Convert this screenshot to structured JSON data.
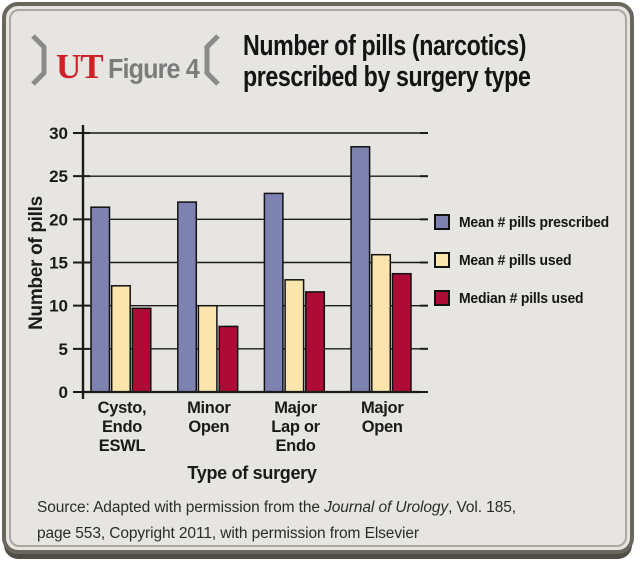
{
  "header": {
    "brand": "UT",
    "figure_label": "Figure 4"
  },
  "title": {
    "line1": "Number of pills (narcotics)",
    "line2": "prescribed by surgery type"
  },
  "chart_data": {
    "type": "bar",
    "title": "Number of pills (narcotics) prescribed by surgery type",
    "categories": [
      [
        "Cysto,",
        "Endo",
        "ESWL"
      ],
      [
        "Minor",
        "Open"
      ],
      [
        "Major",
        "Lap or",
        "Endo"
      ],
      [
        "Major",
        "Open"
      ]
    ],
    "series": [
      {
        "name": "Mean # pills prescribed",
        "color": "#7e82b1",
        "values": [
          21.4,
          22.0,
          23.0,
          28.4
        ]
      },
      {
        "name": "Mean # pills used",
        "color": "#fbe5ad",
        "values": [
          12.3,
          10.0,
          13.0,
          15.9
        ]
      },
      {
        "name": "Median # pills used",
        "color": "#ac0c35",
        "values": [
          9.7,
          7.6,
          11.6,
          13.7
        ]
      }
    ],
    "xlabel": "Type of surgery",
    "ylabel": "Number of pills",
    "ylim": [
      0,
      30
    ],
    "ytick_step": 5,
    "grid": true,
    "legend_position": "right"
  },
  "source": {
    "prefix": "Source: Adapted with permission from the ",
    "italic": "Journal of Urology",
    "suffix_line1": ", Vol. 185,",
    "line2": "page 553, Copyright 2011, with permission from Elsevier"
  },
  "colors": {
    "card_bg": "#e7e5e1",
    "frame_dark": "#6a665d",
    "frame_inner": "#aaa79f",
    "brand_red": "#ce2127",
    "figure_gray": "#7c7c7c",
    "axis_black": "#1a1a1a",
    "bar_purple": "#7e82b1",
    "bar_cream": "#fbe5ad",
    "bar_crimson": "#ac0c35"
  }
}
